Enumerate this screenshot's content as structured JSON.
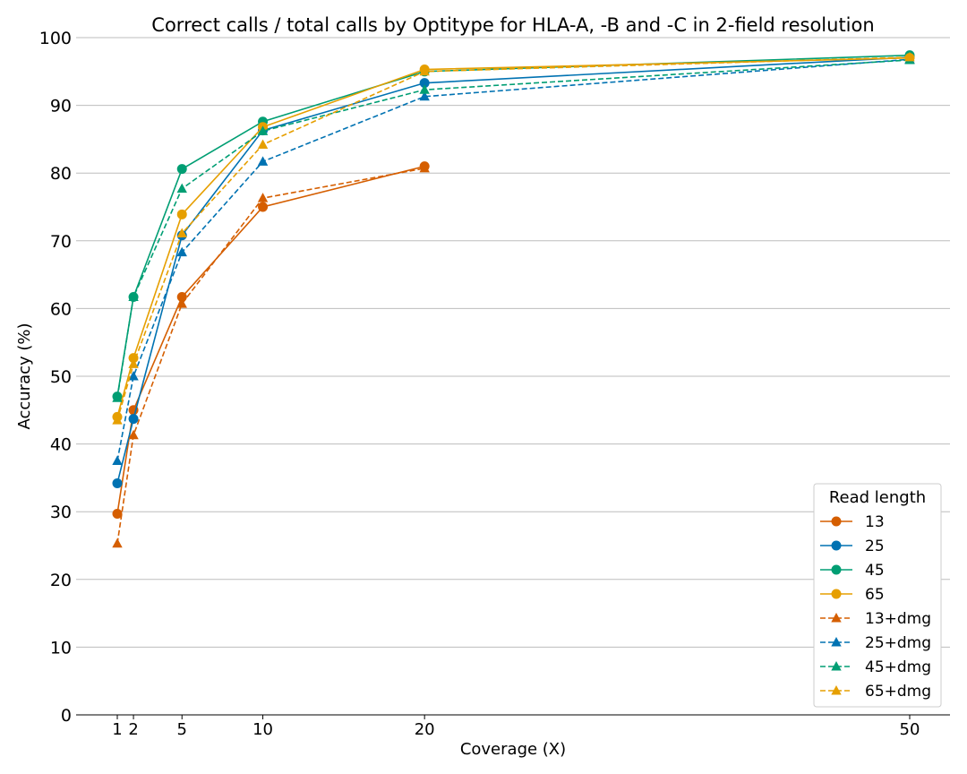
{
  "chart_data": {
    "type": "line",
    "title": "Correct calls / total calls by Optitype for HLA-A, -B and -C in 2-field resolution",
    "xlabel": "Coverage (X)",
    "ylabel": "Accuracy (%)",
    "x": [
      1,
      2,
      5,
      10,
      20,
      50
    ],
    "xticks": [
      "1",
      "2",
      "5",
      "10",
      "20",
      "50"
    ],
    "yticks": [
      "0",
      "10",
      "20",
      "30",
      "40",
      "50",
      "60",
      "70",
      "80",
      "90",
      "100"
    ],
    "ylim": [
      0,
      100
    ],
    "grid": "horizontal",
    "legend": {
      "title": "Read length",
      "placement": "bottom-right"
    },
    "colors": {
      "13": "#d55e00",
      "25": "#0072b2",
      "45": "#009e73",
      "65": "#e69f00"
    },
    "series": [
      {
        "name": "13",
        "style": "solid",
        "marker": "circle",
        "color": "#d55e00",
        "x": [
          1,
          2,
          5,
          10,
          20
        ],
        "values": [
          29.7,
          45.0,
          61.7,
          75.0,
          81.0
        ]
      },
      {
        "name": "25",
        "style": "solid",
        "marker": "circle",
        "color": "#0072b2",
        "x": [
          1,
          2,
          5,
          10,
          20,
          50
        ],
        "values": [
          34.2,
          43.7,
          70.8,
          86.3,
          93.3,
          97.1
        ]
      },
      {
        "name": "45",
        "style": "solid",
        "marker": "circle",
        "color": "#009e73",
        "x": [
          1,
          2,
          5,
          10,
          20,
          50
        ],
        "values": [
          47.0,
          61.7,
          80.6,
          87.6,
          95.0,
          97.4
        ]
      },
      {
        "name": "65",
        "style": "solid",
        "marker": "circle",
        "color": "#e69f00",
        "x": [
          1,
          2,
          5,
          10,
          20,
          50
        ],
        "values": [
          44.0,
          52.7,
          73.9,
          86.8,
          95.3,
          97.0
        ]
      },
      {
        "name": "13+dmg",
        "style": "dashed",
        "marker": "triangle",
        "color": "#d55e00",
        "x": [
          1,
          2,
          5,
          10,
          20
        ],
        "values": [
          25.3,
          41.3,
          60.7,
          76.3,
          80.7
        ]
      },
      {
        "name": "25+dmg",
        "style": "dashed",
        "marker": "triangle",
        "color": "#0072b2",
        "x": [
          1,
          2,
          5,
          10,
          20,
          50
        ],
        "values": [
          37.5,
          50.0,
          68.3,
          81.7,
          91.3,
          96.8
        ]
      },
      {
        "name": "45+dmg",
        "style": "dashed",
        "marker": "triangle",
        "color": "#009e73",
        "x": [
          1,
          2,
          5,
          10,
          20,
          50
        ],
        "values": [
          46.8,
          61.7,
          77.7,
          86.2,
          92.3,
          96.7
        ]
      },
      {
        "name": "65+dmg",
        "style": "dashed",
        "marker": "triangle",
        "color": "#e69f00",
        "x": [
          1,
          2,
          5,
          10,
          20,
          50
        ],
        "values": [
          43.5,
          51.8,
          71.1,
          84.2,
          95.0,
          97.1
        ]
      }
    ]
  }
}
